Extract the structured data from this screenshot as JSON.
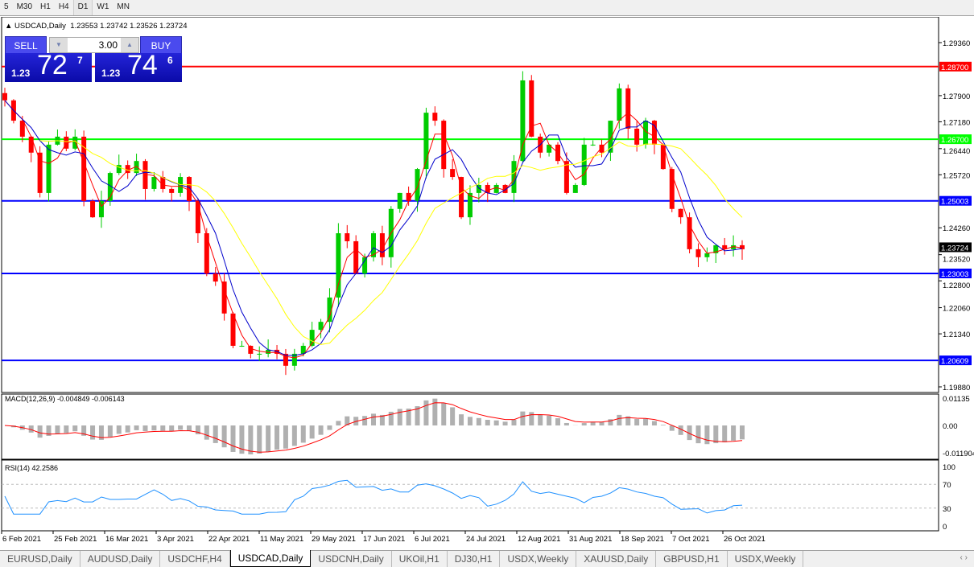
{
  "toolbar": {
    "timeframes": [
      "5",
      "M30",
      "H1",
      "H4",
      "D1",
      "W1",
      "MN"
    ],
    "active": "D1"
  },
  "chart_header": {
    "symbol": "USDCAD,Daily",
    "ohlc": "1.23553 1.23742 1.23526 1.23724"
  },
  "trade_panel": {
    "sell_label": "SELL",
    "buy_label": "BUY",
    "lot": "3.00",
    "sell_prefix": "1.23",
    "sell_big": "72",
    "sell_sup": "7",
    "buy_prefix": "1.23",
    "buy_big": "74",
    "buy_sup": "6"
  },
  "price_axis": {
    "ticks": [
      "1.29360",
      "1.27900",
      "1.27180",
      "1.26440",
      "1.25720",
      "1.24260",
      "1.23520",
      "1.22800",
      "1.22060",
      "1.21340",
      "1.19880"
    ],
    "current": "1.23724"
  },
  "levels": [
    {
      "label": "1.28700",
      "color": "#ff0000"
    },
    {
      "label": "1.26700",
      "color": "#00ff00"
    },
    {
      "label": "1.25003",
      "color": "#0000ff"
    },
    {
      "label": "1.23003",
      "color": "#0000ff"
    },
    {
      "label": "1.20609",
      "color": "#0000ff"
    }
  ],
  "macd": {
    "label": "MACD(12,26,9) -0.004849 -0.006143",
    "ticks": [
      "0.01135",
      "0.00",
      "-0.011904"
    ]
  },
  "rsi": {
    "label": "RSI(14) 42.2586",
    "ticks": [
      "100",
      "70",
      "30",
      "0"
    ]
  },
  "date_axis": [
    "6 Feb 2021",
    "25 Feb 2021",
    "16 Mar 2021",
    "3 Apr 2021",
    "22 Apr 2021",
    "11 May 2021",
    "29 May 2021",
    "17 Jun 2021",
    "6 Jul 2021",
    "24 Jul 2021",
    "12 Aug 2021",
    "31 Aug 2021",
    "18 Sep 2021",
    "7 Oct 2021",
    "26 Oct 2021"
  ],
  "tabs": [
    "EURUSD,Daily",
    "AUDUSD,Daily",
    "USDCHF,H4",
    "USDCAD,Daily",
    "USDCNH,Daily",
    "UKOil,H1",
    "DJ30,H1",
    "USDX,Weekly",
    "XAUUSD,Daily",
    "GBPUSD,H1",
    "USDX,Weekly"
  ],
  "active_tab": "USDCAD,Daily",
  "colors": {
    "bull": "#00cc00",
    "bear": "#ff0000",
    "ma_fast": "#ff0000",
    "ma_mid": "#0000cc",
    "ma_slow": "#ffff00"
  },
  "chart_data": {
    "type": "candlestick",
    "approx_closes": [
      1.2777,
      1.2721,
      1.2677,
      1.2633,
      1.2522,
      1.2655,
      1.2677,
      1.2644,
      1.2677,
      1.25,
      1.2455,
      1.25,
      1.2577,
      1.2599,
      1.2577,
      1.261,
      1.2533,
      1.2566,
      1.2533,
      1.2522,
      1.2566,
      1.25,
      1.2411,
      1.23,
      1.2278,
      1.219,
      1.2101,
      1.2101,
      1.2079,
      1.2079,
      1.209,
      1.2079,
      1.2046,
      1.2079,
      1.2101,
      1.2145,
      1.2167,
      1.2234,
      1.2411,
      1.2389,
      1.23,
      1.2345,
      1.2411,
      1.2345,
      1.2478,
      1.2522,
      1.25,
      1.2588,
      1.2743,
      1.2721,
      1.2588,
      1.2566,
      1.2455,
      1.2522,
      1.2544,
      1.2522,
      1.2544,
      1.2522,
      1.261,
      1.2832,
      1.2677,
      1.2633,
      1.2655,
      1.261,
      1.2522,
      1.2544,
      1.2655,
      1.2655,
      1.2633,
      1.2721,
      1.281,
      1.2699,
      1.2655,
      1.2721,
      1.2655,
      1.2588,
      1.2478,
      1.2455,
      1.2367,
      1.2345,
      1.2356,
      1.2378,
      1.2367,
      1.2378,
      1.2367
    ],
    "ylim": [
      1.1988,
      1.2936
    ]
  }
}
